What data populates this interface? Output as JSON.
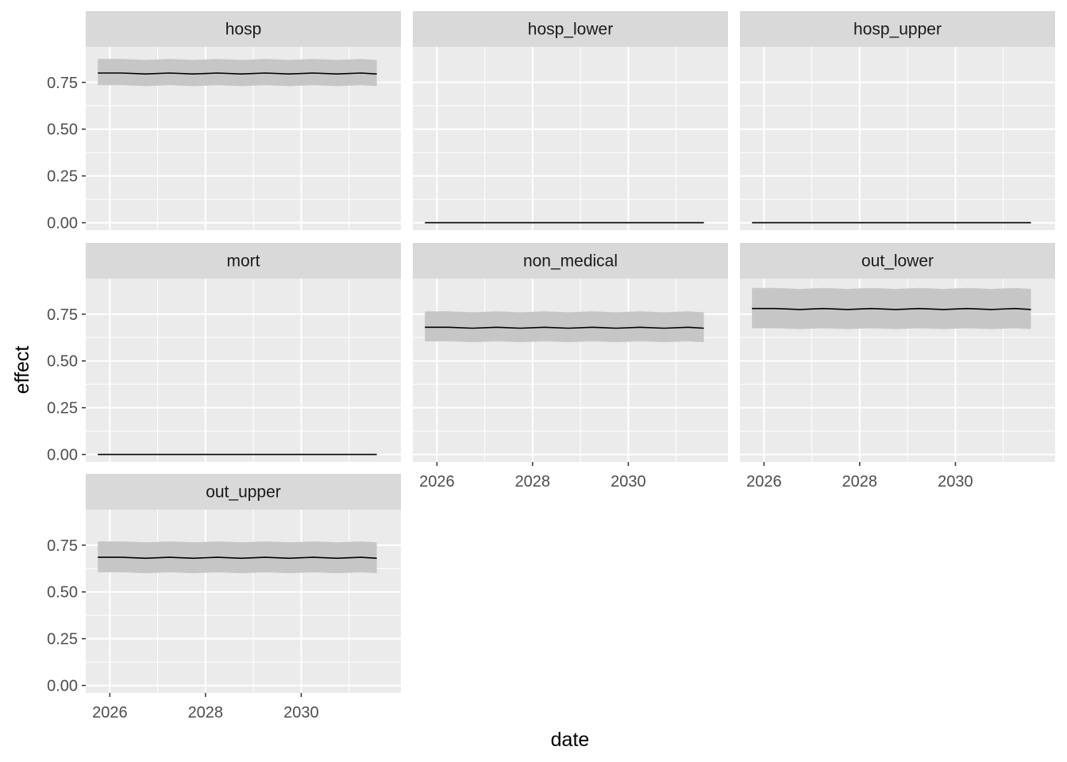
{
  "chart_data": {
    "type": "line",
    "facet_layout": "wrap",
    "xlabel": "date",
    "ylabel": "effect",
    "xlim": [
      "2025-07-01",
      "2032-02-01"
    ],
    "ylim": [
      -0.04,
      0.94
    ],
    "x_ticks": [
      {
        "value": "2026-01-01",
        "label": "2026"
      },
      {
        "value": "2028-01-01",
        "label": "2028"
      },
      {
        "value": "2030-01-01",
        "label": "2030"
      }
    ],
    "y_ticks": [
      {
        "value": 0,
        "label": "0.00"
      },
      {
        "value": 0.25,
        "label": "0.25"
      },
      {
        "value": 0.5,
        "label": "0.50"
      },
      {
        "value": 0.75,
        "label": "0.75"
      }
    ],
    "grid": true,
    "facets": [
      {
        "label": "hosp",
        "x": [
          "2025-10-01",
          "2026-04-01",
          "2026-10-01",
          "2027-04-01",
          "2027-10-01",
          "2028-04-01",
          "2028-10-01",
          "2029-04-01",
          "2029-10-01",
          "2030-04-01",
          "2030-10-01",
          "2031-04-01",
          "2031-08-01"
        ],
        "y": [
          0.8,
          0.8,
          0.795,
          0.8,
          0.795,
          0.8,
          0.795,
          0.8,
          0.795,
          0.8,
          0.795,
          0.8,
          0.795
        ],
        "lower": [
          0.735,
          0.735,
          0.73,
          0.735,
          0.73,
          0.735,
          0.73,
          0.735,
          0.73,
          0.735,
          0.73,
          0.735,
          0.73
        ],
        "upper": [
          0.875,
          0.875,
          0.87,
          0.875,
          0.87,
          0.875,
          0.87,
          0.875,
          0.87,
          0.875,
          0.87,
          0.875,
          0.87
        ]
      },
      {
        "label": "hosp_lower",
        "x": [
          "2025-10-01",
          "2028-10-01",
          "2031-08-01"
        ],
        "y": [
          0.0,
          0.0,
          0.0
        ]
      },
      {
        "label": "hosp_upper",
        "x": [
          "2025-10-01",
          "2028-10-01",
          "2031-08-01"
        ],
        "y": [
          0.0,
          0.0,
          0.0
        ]
      },
      {
        "label": "mort",
        "x": [
          "2025-10-01",
          "2028-10-01",
          "2031-08-01"
        ],
        "y": [
          0.0,
          0.0,
          0.0
        ]
      },
      {
        "label": "non_medical",
        "x": [
          "2025-10-01",
          "2026-04-01",
          "2026-10-01",
          "2027-04-01",
          "2027-10-01",
          "2028-04-01",
          "2028-10-01",
          "2029-04-01",
          "2029-10-01",
          "2030-04-01",
          "2030-10-01",
          "2031-04-01",
          "2031-08-01"
        ],
        "y": [
          0.68,
          0.68,
          0.675,
          0.68,
          0.675,
          0.68,
          0.675,
          0.68,
          0.675,
          0.68,
          0.675,
          0.68,
          0.675
        ],
        "lower": [
          0.605,
          0.605,
          0.6,
          0.605,
          0.6,
          0.605,
          0.6,
          0.605,
          0.6,
          0.605,
          0.6,
          0.605,
          0.6
        ],
        "upper": [
          0.765,
          0.765,
          0.76,
          0.765,
          0.76,
          0.765,
          0.76,
          0.765,
          0.76,
          0.765,
          0.76,
          0.765,
          0.76
        ]
      },
      {
        "label": "out_lower",
        "x": [
          "2025-10-01",
          "2026-04-01",
          "2026-10-01",
          "2027-04-01",
          "2027-10-01",
          "2028-04-01",
          "2028-10-01",
          "2029-04-01",
          "2029-10-01",
          "2030-04-01",
          "2030-10-01",
          "2031-04-01",
          "2031-08-01"
        ],
        "y": [
          0.78,
          0.78,
          0.775,
          0.78,
          0.775,
          0.78,
          0.775,
          0.78,
          0.775,
          0.78,
          0.775,
          0.78,
          0.775
        ],
        "lower": [
          0.675,
          0.675,
          0.67,
          0.675,
          0.67,
          0.675,
          0.67,
          0.675,
          0.67,
          0.675,
          0.67,
          0.675,
          0.67
        ],
        "upper": [
          0.89,
          0.89,
          0.885,
          0.89,
          0.885,
          0.89,
          0.885,
          0.89,
          0.885,
          0.89,
          0.885,
          0.89,
          0.885
        ]
      },
      {
        "label": "out_upper",
        "x": [
          "2025-10-01",
          "2026-04-01",
          "2026-10-01",
          "2027-04-01",
          "2027-10-01",
          "2028-04-01",
          "2028-10-01",
          "2029-04-01",
          "2029-10-01",
          "2030-04-01",
          "2030-10-01",
          "2031-04-01",
          "2031-08-01"
        ],
        "y": [
          0.685,
          0.685,
          0.68,
          0.685,
          0.68,
          0.685,
          0.68,
          0.685,
          0.68,
          0.685,
          0.68,
          0.685,
          0.68
        ],
        "lower": [
          0.605,
          0.605,
          0.6,
          0.605,
          0.6,
          0.605,
          0.6,
          0.605,
          0.6,
          0.605,
          0.6,
          0.605,
          0.6
        ],
        "upper": [
          0.77,
          0.77,
          0.765,
          0.77,
          0.765,
          0.77,
          0.765,
          0.77,
          0.765,
          0.77,
          0.765,
          0.77,
          0.765
        ]
      }
    ],
    "colors": {
      "panel_background": "#ebebeb",
      "strip_background": "#d9d9d9",
      "gridline": "#ffffff",
      "line": "#000000",
      "ribbon": "#c6c6c6"
    }
  }
}
